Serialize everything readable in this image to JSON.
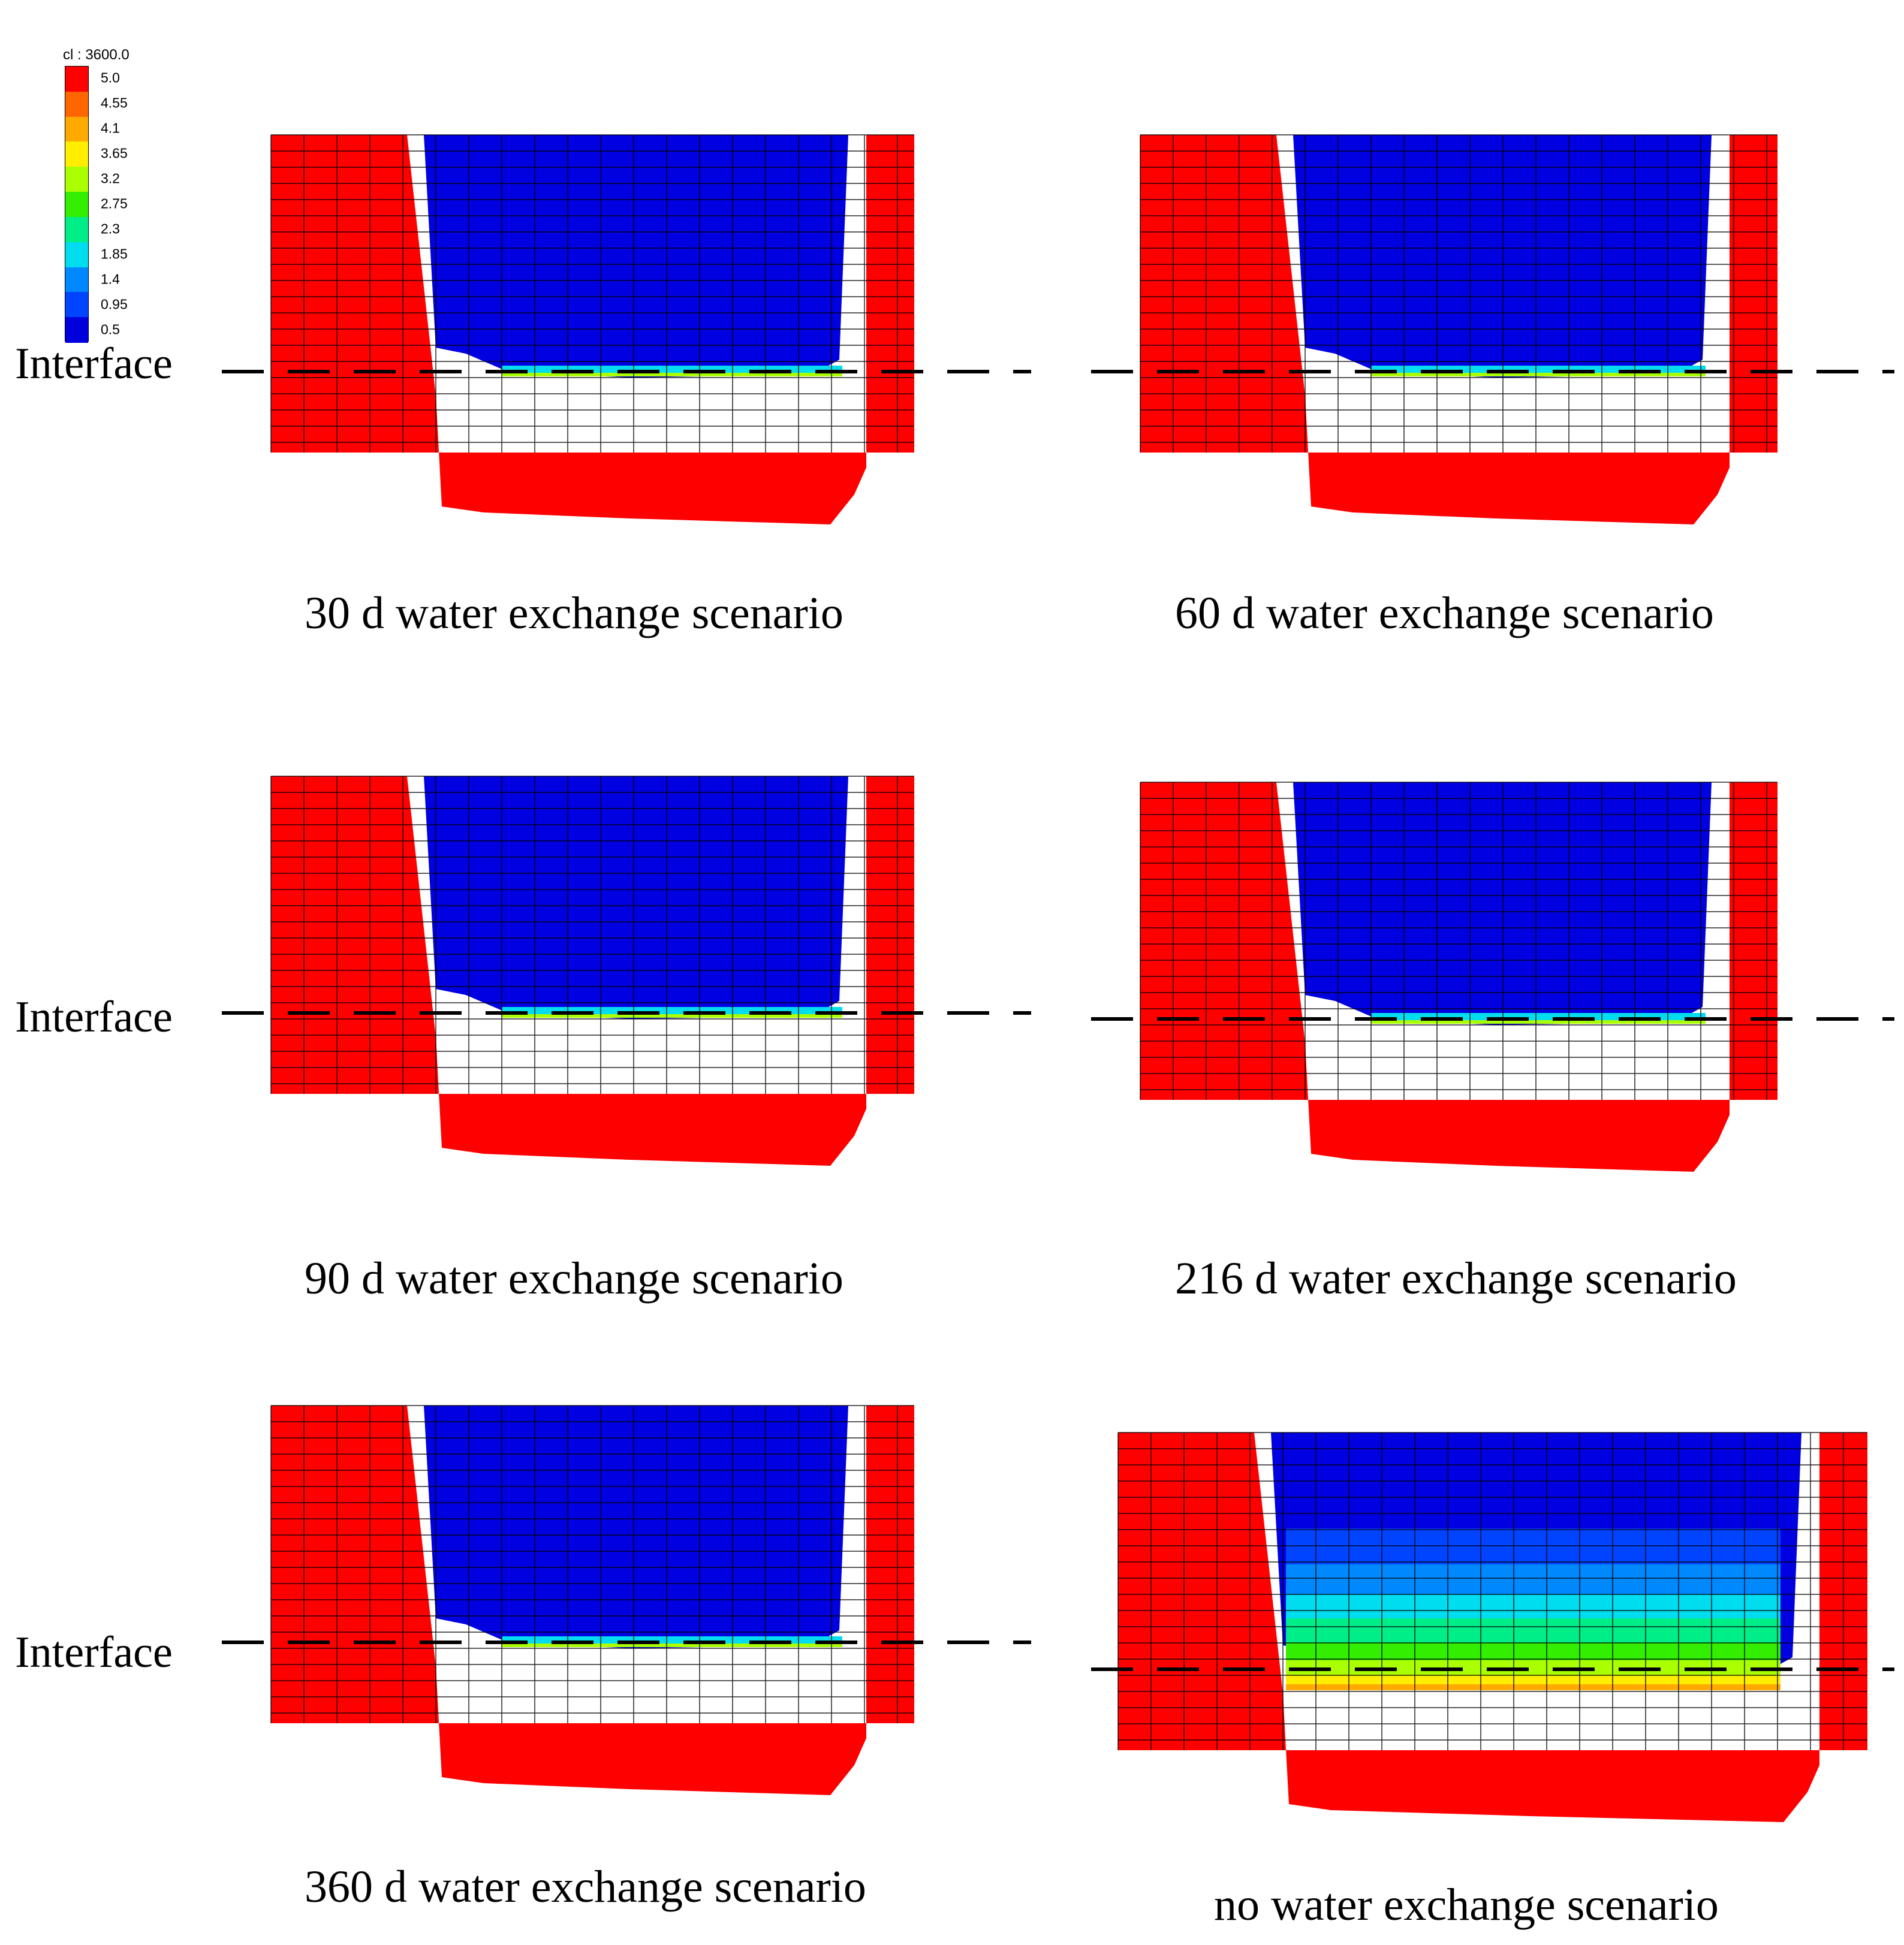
{
  "legend": {
    "title": "cl : 3600.0",
    "ticks": [
      "5.0",
      "4.55",
      "4.1",
      "3.65",
      "3.2",
      "2.75",
      "2.3",
      "1.85",
      "1.4",
      "0.95",
      "0.5"
    ],
    "colors": [
      "#ff0000",
      "#ff6600",
      "#ffaa00",
      "#ffee00",
      "#aaff00",
      "#33ee00",
      "#00ee88",
      "#00ddee",
      "#0088ff",
      "#0044ff",
      "#0000dd"
    ]
  },
  "interface_label": "Interface",
  "panels": [
    {
      "caption": "30 d water exchange scenario",
      "profile": "30d",
      "show_interface_label": true
    },
    {
      "caption": "60 d water exchange scenario",
      "profile": "60d",
      "show_interface_label": false
    },
    {
      "caption": "90 d water exchange scenario",
      "profile": "90d",
      "show_interface_label": true
    },
    {
      "caption": "216 d water exchange scenario",
      "profile": "216d",
      "show_interface_label": false
    },
    {
      "caption": "360 d water exchange scenario",
      "profile": "360d",
      "show_interface_label": true
    },
    {
      "caption": "no water exchange scenario",
      "profile": "none",
      "show_interface_label": false
    }
  ],
  "colors": {
    "saline": "#ff0000",
    "fresh": "#0000e0",
    "mesh": "#000000",
    "interface_line": "#000000"
  }
}
